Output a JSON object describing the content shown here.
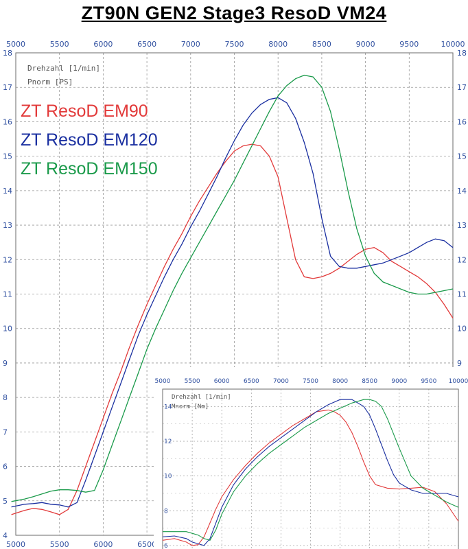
{
  "page": {
    "title": "ZT90N GEN2 Stage3 ResoD VM24"
  },
  "chart_data": [
    {
      "type": "line",
      "name": "power",
      "xlabel": "Drehzahl [1/min]",
      "ylabel": "Pnorm [PS]",
      "xlim": [
        5000,
        10000
      ],
      "ylim": [
        4,
        18
      ],
      "xticks": [
        5000,
        5500,
        6000,
        6500,
        7000,
        7500,
        8000,
        8500,
        9000,
        9500,
        10000
      ],
      "xticks_bottom": [
        5000,
        5500,
        6000,
        6500
      ],
      "yticks": [
        4,
        5,
        6,
        7,
        8,
        9,
        10,
        11,
        12,
        13,
        14,
        15,
        16,
        17,
        18
      ],
      "yticks_right": [
        9,
        10,
        11,
        12,
        13,
        14,
        15,
        16,
        17,
        18
      ],
      "grid": true,
      "legend_position": "top-left",
      "series": [
        {
          "name": "ZT ResoD EM90",
          "color": "#e23a3a",
          "x": [
            4950,
            5100,
            5200,
            5300,
            5400,
            5500,
            5600,
            5700,
            5800,
            5900,
            6000,
            6100,
            6200,
            6300,
            6400,
            6500,
            6600,
            6700,
            6800,
            6900,
            7000,
            7100,
            7200,
            7300,
            7400,
            7500,
            7600,
            7700,
            7800,
            7900,
            8000,
            8100,
            8200,
            8300,
            8400,
            8500,
            8600,
            8700,
            8800,
            8900,
            9000,
            9100,
            9200,
            9300,
            9400,
            9500,
            9600,
            9700,
            9800,
            9900,
            10000
          ],
          "values": [
            4.6,
            4.72,
            4.78,
            4.75,
            4.68,
            4.6,
            4.75,
            5.3,
            6.0,
            6.7,
            7.4,
            8.1,
            8.75,
            9.45,
            10.1,
            10.7,
            11.25,
            11.8,
            12.3,
            12.75,
            13.25,
            13.7,
            14.1,
            14.5,
            14.85,
            15.15,
            15.3,
            15.35,
            15.3,
            15.0,
            14.4,
            13.2,
            12.0,
            11.5,
            11.45,
            11.5,
            11.6,
            11.75,
            11.95,
            12.15,
            12.3,
            12.35,
            12.2,
            11.95,
            11.8,
            11.65,
            11.5,
            11.3,
            11.05,
            10.7,
            10.3
          ]
        },
        {
          "name": "ZT ResoD EM120",
          "color": "#1a2fa0",
          "x": [
            4950,
            5100,
            5200,
            5300,
            5400,
            5500,
            5600,
            5700,
            5800,
            5900,
            6000,
            6100,
            6200,
            6300,
            6400,
            6500,
            6600,
            6700,
            6800,
            6900,
            7000,
            7100,
            7200,
            7300,
            7400,
            7500,
            7600,
            7700,
            7800,
            7900,
            8000,
            8100,
            8200,
            8300,
            8400,
            8500,
            8600,
            8700,
            8800,
            8900,
            9000,
            9100,
            9200,
            9300,
            9400,
            9500,
            9600,
            9700,
            9800,
            9900,
            10000
          ],
          "values": [
            4.82,
            4.9,
            4.92,
            4.95,
            4.9,
            4.88,
            4.82,
            4.95,
            5.6,
            6.3,
            7.0,
            7.7,
            8.4,
            9.1,
            9.8,
            10.4,
            10.95,
            11.5,
            12.0,
            12.45,
            12.95,
            13.4,
            13.9,
            14.4,
            14.95,
            15.45,
            15.9,
            16.25,
            16.5,
            16.65,
            16.7,
            16.55,
            16.1,
            15.4,
            14.5,
            13.2,
            12.1,
            11.8,
            11.75,
            11.75,
            11.8,
            11.85,
            11.9,
            12.0,
            12.1,
            12.2,
            12.35,
            12.5,
            12.6,
            12.55,
            12.35
          ]
        },
        {
          "name": "ZT ResoD EM150",
          "color": "#1a9a4a",
          "x": [
            4950,
            5100,
            5200,
            5300,
            5400,
            5500,
            5600,
            5700,
            5800,
            5900,
            6000,
            6100,
            6200,
            6300,
            6400,
            6500,
            6600,
            6700,
            6800,
            6900,
            7000,
            7100,
            7200,
            7300,
            7400,
            7500,
            7600,
            7700,
            7800,
            7900,
            8000,
            8100,
            8200,
            8300,
            8400,
            8500,
            8600,
            8700,
            8800,
            8900,
            9000,
            9100,
            9200,
            9300,
            9400,
            9500,
            9600,
            9700,
            9800,
            9900,
            10000
          ],
          "values": [
            4.98,
            5.05,
            5.12,
            5.2,
            5.28,
            5.32,
            5.32,
            5.3,
            5.25,
            5.3,
            5.9,
            6.6,
            7.3,
            8.0,
            8.7,
            9.4,
            10.0,
            10.55,
            11.1,
            11.6,
            12.05,
            12.5,
            12.95,
            13.4,
            13.85,
            14.3,
            14.8,
            15.3,
            15.8,
            16.3,
            16.75,
            17.05,
            17.25,
            17.35,
            17.3,
            17.0,
            16.3,
            15.2,
            14.0,
            12.9,
            12.1,
            11.6,
            11.35,
            11.25,
            11.15,
            11.05,
            11.0,
            11.0,
            11.05,
            11.1,
            11.15
          ]
        }
      ]
    },
    {
      "type": "line",
      "name": "torque",
      "xlabel": "Drehzahl [1/min]",
      "ylabel": "Mnorm [Nm]",
      "xlim": [
        5000,
        10000
      ],
      "ylim": [
        5.8,
        15
      ],
      "xticks": [
        5000,
        5500,
        6000,
        6500,
        7000,
        7500,
        8000,
        8500,
        9000,
        9500,
        10000
      ],
      "yticks": [
        6,
        8,
        10,
        12,
        14
      ],
      "grid": true,
      "series": [
        {
          "name": "ZT ResoD EM90",
          "color": "#e23a3a",
          "x": [
            5000,
            5200,
            5400,
            5500,
            5600,
            5700,
            5800,
            5900,
            6000,
            6200,
            6400,
            6600,
            6800,
            7000,
            7200,
            7400,
            7600,
            7800,
            7900,
            8000,
            8100,
            8200,
            8300,
            8400,
            8500,
            8600,
            8800,
            9000,
            9200,
            9400,
            9600,
            9800,
            10000
          ],
          "values": [
            6.3,
            6.4,
            6.2,
            6.0,
            6.05,
            6.5,
            7.3,
            8.1,
            8.8,
            9.8,
            10.6,
            11.3,
            11.9,
            12.4,
            12.9,
            13.3,
            13.7,
            13.8,
            13.7,
            13.5,
            13.1,
            12.5,
            11.7,
            10.8,
            10.0,
            9.5,
            9.3,
            9.25,
            9.3,
            9.35,
            9.1,
            8.4,
            7.4
          ]
        },
        {
          "name": "ZT ResoD EM120",
          "color": "#1a2fa0",
          "x": [
            5000,
            5200,
            5400,
            5500,
            5600,
            5700,
            5800,
            5900,
            6000,
            6200,
            6400,
            6600,
            6800,
            7000,
            7200,
            7400,
            7600,
            7800,
            8000,
            8200,
            8400,
            8500,
            8600,
            8700,
            8800,
            8900,
            9000,
            9200,
            9400,
            9600,
            9800,
            10000
          ],
          "values": [
            6.5,
            6.55,
            6.4,
            6.2,
            6.1,
            6.0,
            6.4,
            7.3,
            8.2,
            9.5,
            10.4,
            11.1,
            11.7,
            12.2,
            12.7,
            13.2,
            13.7,
            14.1,
            14.4,
            14.4,
            14.0,
            13.5,
            12.7,
            11.8,
            10.9,
            10.1,
            9.6,
            9.2,
            9.0,
            9.0,
            9.0,
            8.8
          ]
        },
        {
          "name": "ZT ResoD EM150",
          "color": "#1a9a4a",
          "x": [
            5000,
            5200,
            5400,
            5500,
            5600,
            5700,
            5800,
            5900,
            6000,
            6200,
            6400,
            6600,
            6800,
            7000,
            7200,
            7400,
            7600,
            7800,
            8000,
            8200,
            8400,
            8500,
            8600,
            8700,
            8800,
            9000,
            9200,
            9400,
            9600,
            9800,
            10000
          ],
          "values": [
            6.8,
            6.8,
            6.8,
            6.7,
            6.6,
            6.4,
            6.3,
            6.9,
            7.8,
            9.1,
            10.0,
            10.7,
            11.3,
            11.8,
            12.3,
            12.8,
            13.2,
            13.6,
            13.9,
            14.2,
            14.4,
            14.4,
            14.3,
            14.0,
            13.3,
            11.6,
            10.0,
            9.3,
            8.9,
            8.5,
            8.2
          ]
        }
      ]
    }
  ]
}
